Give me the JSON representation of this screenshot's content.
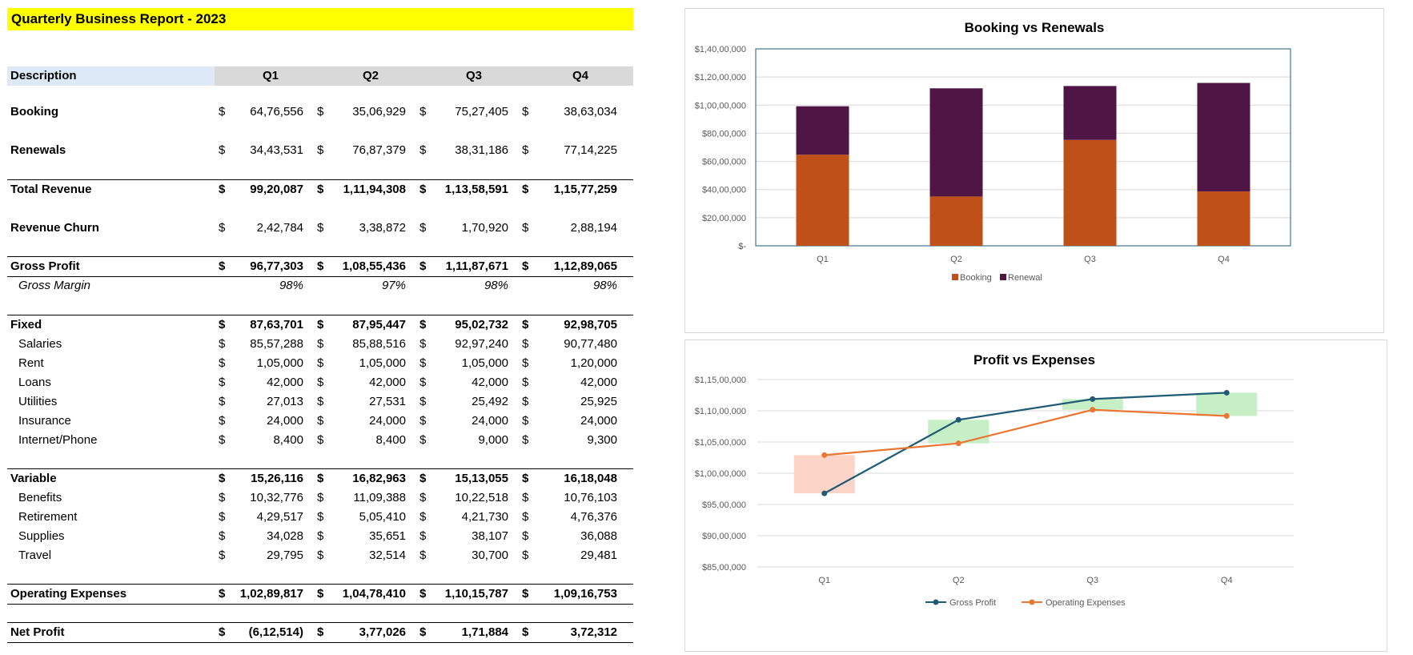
{
  "report_title": "Quarterly Business Report - 2023",
  "header": {
    "description": "Description",
    "quarters": [
      "Q1",
      "Q2",
      "Q3",
      "Q4"
    ]
  },
  "currency_symbol": "$",
  "rows": {
    "booking": {
      "label": "Booking",
      "values": [
        "64,76,556",
        "35,06,929",
        "75,27,405",
        "38,63,034"
      ]
    },
    "renewals": {
      "label": "Renewals",
      "values": [
        "34,43,531",
        "76,87,379",
        "38,31,186",
        "77,14,225"
      ]
    },
    "total_revenue": {
      "label": "Total Revenue",
      "values": [
        "99,20,087",
        "1,11,94,308",
        "1,13,58,591",
        "1,15,77,259"
      ]
    },
    "revenue_churn": {
      "label": "Revenue Churn",
      "values": [
        "2,42,784",
        "3,38,872",
        "1,70,920",
        "2,88,194"
      ]
    },
    "gross_profit": {
      "label": "Gross Profit",
      "values": [
        "96,77,303",
        "1,08,55,436",
        "1,11,87,671",
        "1,12,89,065"
      ]
    },
    "gross_margin": {
      "label": "Gross Margin",
      "values": [
        "98%",
        "97%",
        "98%",
        "98%"
      ]
    },
    "fixed": {
      "label": "Fixed",
      "values": [
        "87,63,701",
        "87,95,447",
        "95,02,732",
        "92,98,705"
      ]
    },
    "salaries": {
      "label": "Salaries",
      "values": [
        "85,57,288",
        "85,88,516",
        "92,97,240",
        "90,77,480"
      ]
    },
    "rent": {
      "label": "Rent",
      "values": [
        "1,05,000",
        "1,05,000",
        "1,05,000",
        "1,20,000"
      ]
    },
    "loans": {
      "label": "Loans",
      "values": [
        "42,000",
        "42,000",
        "42,000",
        "42,000"
      ]
    },
    "utilities": {
      "label": "Utilities",
      "values": [
        "27,013",
        "27,531",
        "25,492",
        "25,925"
      ]
    },
    "insurance": {
      "label": "Insurance",
      "values": [
        "24,000",
        "24,000",
        "24,000",
        "24,000"
      ]
    },
    "internet": {
      "label": "Internet/Phone",
      "values": [
        "8,400",
        "8,400",
        "9,000",
        "9,300"
      ]
    },
    "variable": {
      "label": "Variable",
      "values": [
        "15,26,116",
        "16,82,963",
        "15,13,055",
        "16,18,048"
      ]
    },
    "benefits": {
      "label": "Benefits",
      "values": [
        "10,32,776",
        "11,09,388",
        "10,22,518",
        "10,76,103"
      ]
    },
    "retirement": {
      "label": "Retirement",
      "values": [
        "4,29,517",
        "5,05,410",
        "4,21,730",
        "4,76,376"
      ]
    },
    "supplies": {
      "label": "Supplies",
      "values": [
        "34,028",
        "35,651",
        "38,107",
        "36,088"
      ]
    },
    "travel": {
      "label": "Travel",
      "values": [
        "29,795",
        "32,514",
        "30,700",
        "29,481"
      ]
    },
    "operating_expenses": {
      "label": "Operating Expenses",
      "values": [
        "1,02,89,817",
        "1,04,78,410",
        "1,10,15,787",
        "1,09,16,753"
      ]
    },
    "net_profit": {
      "label": "Net Profit",
      "values": [
        "(6,12,514)",
        "3,77,026",
        "1,71,884",
        "3,72,312"
      ]
    }
  },
  "colors": {
    "title_fill": "#ffff00",
    "booking": "#c0501a",
    "renewal": "#4e1545",
    "gross_profit": "#1f5b74",
    "operating_expenses": "#e97633",
    "band_positive": "#c6efc6",
    "band_negative": "#fcd5c8"
  },
  "chart_data": [
    {
      "type": "bar",
      "stacked": true,
      "title": "Booking vs Renewals",
      "categories": [
        "Q1",
        "Q2",
        "Q3",
        "Q4"
      ],
      "series": [
        {
          "name": "Booking",
          "values": [
            6476556,
            3506929,
            7527405,
            3863034
          ]
        },
        {
          "name": "Renewal",
          "values": [
            3443531,
            7687379,
            3831186,
            7714225
          ]
        }
      ],
      "ylim": [
        0,
        14000000
      ],
      "yticks": [
        "$-",
        "$20,00,000",
        "$40,00,000",
        "$60,00,000",
        "$80,00,000",
        "$1,00,00,000",
        "$1,20,00,000",
        "$1,40,00,000"
      ],
      "grid": true,
      "legend": "bottom"
    },
    {
      "type": "line",
      "title": "Profit vs Expenses",
      "categories": [
        "Q1",
        "Q2",
        "Q3",
        "Q4"
      ],
      "series": [
        {
          "name": "Gross Profit",
          "values": [
            9677303,
            10855436,
            11187671,
            11289065
          ]
        },
        {
          "name": "Operating Expenses",
          "values": [
            10289817,
            10478410,
            11015787,
            10916753
          ]
        }
      ],
      "ylim": [
        8500000,
        11500000
      ],
      "yticks": [
        "$85,00,000",
        "$90,00,000",
        "$95,00,000",
        "$1,00,00,000",
        "$1,05,00,000",
        "$1,10,00,000",
        "$1,15,00,000"
      ],
      "grid": true,
      "legend": "bottom"
    }
  ]
}
